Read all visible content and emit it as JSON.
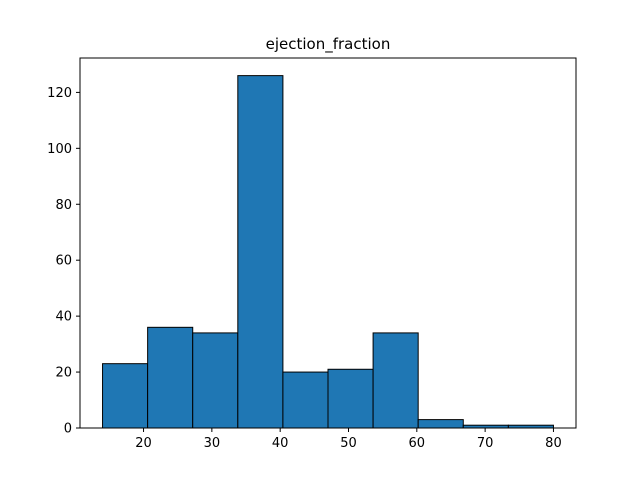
{
  "chart_data": {
    "type": "histogram",
    "title": "ejection_fraction",
    "xlabel": "",
    "ylabel": "",
    "bin_edges": [
      14,
      20.6,
      27.2,
      33.8,
      40.4,
      47,
      53.6,
      60.2,
      66.8,
      73.4,
      80
    ],
    "values": [
      23,
      36,
      34,
      126,
      20,
      21,
      34,
      3,
      1,
      1
    ],
    "xlim": [
      10.7,
      83.3
    ],
    "ylim": [
      0,
      132.3
    ],
    "x_ticks": [
      20,
      30,
      40,
      50,
      60,
      70,
      80
    ],
    "y_ticks": [
      0,
      20,
      40,
      60,
      80,
      100,
      120
    ],
    "bar_color": "#1f77b4",
    "edge_color": "#000000",
    "grid": false,
    "legend": "none"
  }
}
